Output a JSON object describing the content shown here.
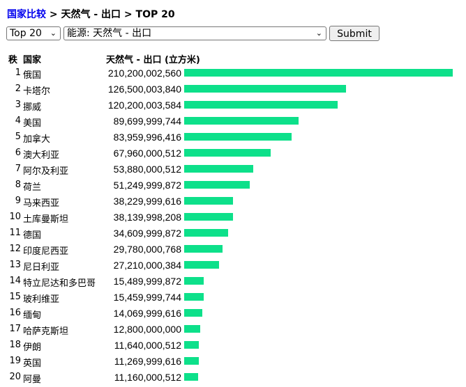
{
  "breadcrumb": {
    "root": "国家比较",
    "sep1": ">",
    "category": "天然气 - 出口",
    "sep2": ">",
    "current": "TOP 20"
  },
  "controls": {
    "top_select": "Top 20",
    "indicator_select": "能源: 天然气 - 出口",
    "submit_label": "Submit",
    "chevron_icon": "chevron-down-icon"
  },
  "table": {
    "rank_header": "秩",
    "country_header": "国家",
    "value_header": "天然气 - 出口 (立方米)",
    "bar_color": "#0de08a"
  },
  "chart_data": {
    "type": "bar",
    "orientation": "horizontal",
    "title": "",
    "xlabel": "天然气 - 出口 (立方米)",
    "ylabel": "",
    "xlim": [
      0,
      210200002560
    ],
    "categories": [
      "俄国",
      "卡塔尔",
      "挪威",
      "美国",
      "加拿大",
      "澳大利亚",
      "阿尔及利亚",
      "荷兰",
      "马来西亚",
      "土库曼斯坦",
      "德国",
      "印度尼西亚",
      "尼日利亚",
      "特立尼达和多巴哥",
      "玻利维亚",
      "缅甸",
      "哈萨克斯坦",
      "伊朗",
      "英国",
      "阿曼"
    ],
    "ranks": [
      "1",
      "2",
      "3",
      "4",
      "5",
      "6",
      "7",
      "8",
      "9",
      "10",
      "11",
      "12",
      "13",
      "14",
      "15",
      "16",
      "17",
      "18",
      "19",
      "20"
    ],
    "labels": [
      "210,200,002,560",
      "126,500,003,840",
      "120,200,003,584",
      "89,699,999,744",
      "83,959,996,416",
      "67,960,000,512",
      "53,880,000,512",
      "51,249,999,872",
      "38,229,999,616",
      "38,139,998,208",
      "34,609,999,872",
      "29,780,000,768",
      "27,210,000,384",
      "15,489,999,872",
      "15,459,999,744",
      "14,069,999,616",
      "12,800,000,000",
      "11,640,000,512",
      "11,269,999,616",
      "11,160,000,512"
    ],
    "values": [
      210200002560,
      126500003840,
      120200003584,
      89699999744,
      83959996416,
      67960000512,
      53880000512,
      51249999872,
      38229999616,
      38139998208,
      34609999872,
      29780000768,
      27210000384,
      15489999872,
      15459999744,
      14069999616,
      12800000000,
      11640000512,
      11269999616,
      11160000512
    ]
  }
}
